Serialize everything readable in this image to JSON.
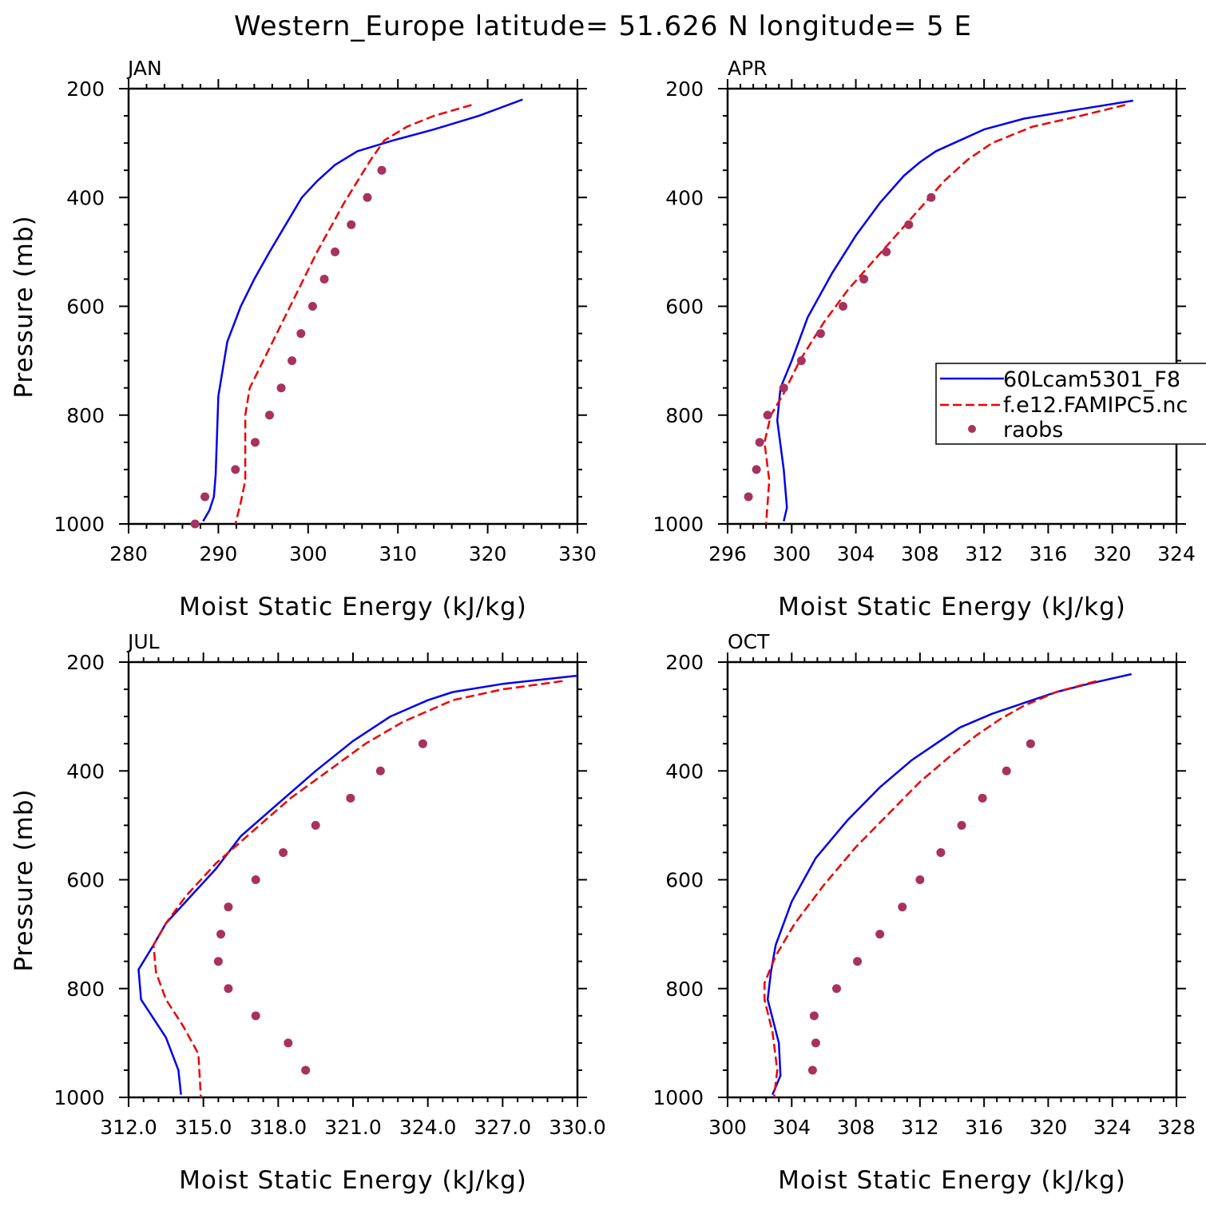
{
  "title": "Western_Europe  latitude= 51.626 N longitude= 5 E",
  "legend": {
    "entries": [
      "60Lcam5301_F8",
      "f.e12.FAMIPC5.nc",
      "raobs"
    ]
  },
  "colors": {
    "model_a": "#0000ee",
    "model_b": "#ee0000",
    "raobs": "#a8325e",
    "axis": "#000000"
  },
  "chart_data": [
    {
      "type": "line",
      "panel": "JAN",
      "xlabel": "Moist Static Energy (kJ/kg)",
      "ylabel": "Pressure (mb)",
      "xlim": [
        280,
        330
      ],
      "xticks": [
        280,
        290,
        300,
        310,
        320,
        330
      ],
      "xtick_labels": [
        "280",
        "290",
        "300",
        "310",
        "320",
        "330"
      ],
      "ylim": [
        1000,
        200
      ],
      "yticks": [
        200,
        400,
        600,
        800,
        1000
      ],
      "series": [
        {
          "name": "60Lcam5301_F8",
          "style": "solid",
          "x": [
            323.9,
            319,
            314,
            309.5,
            305.5,
            303,
            301,
            299.3,
            297.5,
            295.7,
            294,
            292.5,
            291,
            290,
            289.7,
            289.5,
            289,
            288.3
          ],
          "y": [
            220,
            250,
            275,
            295,
            315,
            340,
            370,
            400,
            450,
            500,
            550,
            600,
            665,
            765,
            910,
            950,
            975,
            995
          ]
        },
        {
          "name": "f.e12.FAMIPC5.nc",
          "style": "dashed",
          "x": [
            318.2,
            314,
            311,
            308.5,
            307,
            305.5,
            304,
            302.5,
            301,
            299.5,
            298,
            296.5,
            295,
            293.5,
            293,
            293,
            292.5,
            291.9
          ],
          "y": [
            230,
            250,
            270,
            295,
            330,
            370,
            410,
            455,
            500,
            550,
            600,
            650,
            700,
            750,
            800,
            920,
            960,
            1000
          ]
        },
        {
          "name": "raobs",
          "style": "dots",
          "x": [
            287.4,
            288.5,
            291.9,
            294.1,
            295.7,
            297,
            298.2,
            299.2,
            300.5,
            301.8,
            303,
            304.8,
            306.6,
            308.2
          ],
          "y": [
            1000,
            950,
            900,
            850,
            800,
            750,
            700,
            650,
            600,
            550,
            500,
            450,
            400,
            350
          ]
        }
      ]
    },
    {
      "type": "line",
      "panel": "APR",
      "xlabel": "Moist Static Energy (kJ/kg)",
      "ylabel": "",
      "xlim": [
        296,
        324
      ],
      "xticks": [
        296,
        300,
        304,
        308,
        312,
        316,
        320,
        324
      ],
      "xtick_labels": [
        "296",
        "300",
        "304",
        "308",
        "312",
        "316",
        "320",
        "324"
      ],
      "ylim": [
        1000,
        200
      ],
      "yticks": [
        200,
        400,
        600,
        800,
        1000
      ],
      "series": [
        {
          "name": "60Lcam5301_F8",
          "style": "solid",
          "x": [
            321.3,
            317.5,
            314.5,
            312,
            310.5,
            309,
            308,
            307,
            305.5,
            304,
            302.5,
            301,
            300,
            299.3,
            299.1,
            299.5,
            299.7,
            299.5
          ],
          "y": [
            222,
            240,
            255,
            275,
            295,
            315,
            335,
            360,
            410,
            470,
            540,
            620,
            700,
            750,
            810,
            900,
            970,
            995
          ]
        },
        {
          "name": "f.e12.FAMIPC5.nc",
          "style": "dashed",
          "x": [
            320.8,
            318,
            315,
            312.5,
            311,
            309.5,
            308,
            306.5,
            305,
            303.5,
            302,
            300.5,
            299.5,
            298.7,
            298.3,
            298.6,
            298.4
          ],
          "y": [
            230,
            250,
            270,
            300,
            330,
            370,
            420,
            470,
            520,
            570,
            630,
            700,
            760,
            800,
            850,
            920,
            1000
          ]
        },
        {
          "name": "raobs",
          "style": "dots",
          "x": [
            297.3,
            297.8,
            298,
            298.5,
            299.5,
            300.6,
            301.8,
            303.2,
            304.5,
            305.9,
            307.3,
            308.7
          ],
          "y": [
            950,
            900,
            850,
            800,
            750,
            700,
            650,
            600,
            550,
            500,
            450,
            400
          ]
        }
      ]
    },
    {
      "type": "line",
      "panel": "JUL",
      "xlabel": "Moist Static Energy (kJ/kg)",
      "ylabel": "Pressure (mb)",
      "xlim": [
        312,
        330
      ],
      "xticks": [
        312,
        315,
        318,
        321,
        324,
        327,
        330
      ],
      "xtick_labels": [
        "312.0",
        "315.0",
        "318.0",
        "321.0",
        "324.0",
        "327.0",
        "330.0"
      ],
      "ylim": [
        1000,
        200
      ],
      "yticks": [
        200,
        400,
        600,
        800,
        1000
      ],
      "series": [
        {
          "name": "60Lcam5301_F8",
          "style": "solid",
          "x": [
            330,
            327,
            325,
            324,
            322.5,
            321,
            319.5,
            318,
            316.5,
            315.5,
            314.5,
            313.5,
            313,
            312.4,
            312.5,
            313.5,
            314,
            314.1
          ],
          "y": [
            225,
            240,
            255,
            270,
            300,
            345,
            400,
            460,
            520,
            580,
            630,
            680,
            720,
            765,
            820,
            890,
            950,
            995
          ]
        },
        {
          "name": "f.e12.FAMIPC5.nc",
          "style": "dashed",
          "x": [
            329.4,
            327,
            325,
            323,
            321.5,
            320,
            318.5,
            317,
            315.5,
            314.3,
            313.5,
            313,
            313.1,
            313.5,
            314.2,
            314.8,
            314.9
          ],
          "y": [
            235,
            250,
            270,
            310,
            350,
            400,
            450,
            510,
            570,
            630,
            680,
            720,
            770,
            820,
            870,
            920,
            1000
          ]
        },
        {
          "name": "raobs",
          "style": "dots",
          "x": [
            319.1,
            318.4,
            317.1,
            316,
            315.6,
            315.7,
            316,
            317.1,
            318.2,
            319.5,
            320.9,
            322.1,
            323.8
          ],
          "y": [
            950,
            900,
            850,
            800,
            750,
            700,
            650,
            600,
            550,
            500,
            450,
            400,
            350
          ]
        }
      ]
    },
    {
      "type": "line",
      "panel": "OCT",
      "xlabel": "Moist Static Energy (kJ/kg)",
      "ylabel": "",
      "xlim": [
        300,
        328
      ],
      "xticks": [
        300,
        304,
        308,
        312,
        316,
        320,
        324,
        328
      ],
      "xtick_labels": [
        "300",
        "304",
        "308",
        "312",
        "316",
        "320",
        "324",
        "328"
      ],
      "ylim": [
        1000,
        200
      ],
      "yticks": [
        200,
        400,
        600,
        800,
        1000
      ],
      "series": [
        {
          "name": "60Lcam5301_F8",
          "style": "solid",
          "x": [
            325.2,
            322.5,
            320.5,
            318.5,
            316.5,
            314.5,
            313,
            311.5,
            309.5,
            307.5,
            305.5,
            304,
            303,
            302.7,
            302.5,
            303.2,
            303.3,
            302.8
          ],
          "y": [
            222,
            240,
            255,
            275,
            295,
            320,
            350,
            380,
            430,
            490,
            560,
            640,
            720,
            770,
            820,
            900,
            960,
            995
          ]
        },
        {
          "name": "f.e12.FAMIPC5.nc",
          "style": "dashed",
          "x": [
            323,
            320.5,
            318.5,
            317,
            315.5,
            314,
            312,
            310,
            308,
            306,
            304.2,
            303,
            302.3,
            302.3,
            302.8,
            303.1,
            302.9
          ],
          "y": [
            235,
            255,
            280,
            305,
            335,
            370,
            420,
            480,
            540,
            610,
            680,
            740,
            790,
            820,
            880,
            950,
            1000
          ]
        },
        {
          "name": "raobs",
          "style": "dots",
          "x": [
            305.3,
            305.5,
            305.4,
            306.8,
            308.1,
            309.5,
            310.9,
            312,
            313.3,
            314.6,
            315.9,
            317.4,
            318.9
          ],
          "y": [
            950,
            900,
            850,
            800,
            750,
            700,
            650,
            600,
            550,
            500,
            450,
            400,
            350
          ]
        }
      ]
    }
  ]
}
